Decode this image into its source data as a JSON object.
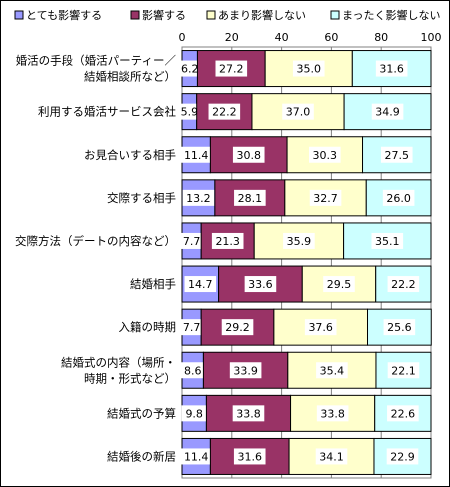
{
  "chart_data": {
    "type": "bar",
    "orientation": "horizontal",
    "stacked": "percent",
    "xlim": [
      0,
      100
    ],
    "xticks": [
      "0",
      "20",
      "40",
      "60",
      "80",
      "100"
    ],
    "legend_position": "top",
    "categories": [
      [
        "婚活の手段（婚活パーティー／",
        "結婚相談所など）"
      ],
      [
        "利用する婚活サービス会社"
      ],
      [
        "お見合いする相手"
      ],
      [
        "交際する相手"
      ],
      [
        "交際方法（デートの内容など）"
      ],
      [
        "結婚相手"
      ],
      [
        "入籍の時期"
      ],
      [
        "結婚式の内容（場所・",
        "時期・形式など）"
      ],
      [
        "結婚式の予算"
      ],
      [
        "結婚後の新居"
      ]
    ],
    "series": [
      {
        "name": "とても影響する",
        "color": "#9999ff",
        "values": [
          6.2,
          5.9,
          11.4,
          13.2,
          7.7,
          14.7,
          7.7,
          8.6,
          9.8,
          11.4
        ]
      },
      {
        "name": "影響する",
        "color": "#993366",
        "values": [
          27.2,
          22.2,
          30.8,
          28.1,
          21.3,
          33.6,
          29.2,
          33.9,
          33.8,
          31.6
        ]
      },
      {
        "name": "あまり影響しない",
        "color": "#ffffcc",
        "values": [
          35.0,
          37.0,
          30.3,
          32.7,
          35.9,
          29.5,
          37.6,
          35.4,
          33.8,
          34.1
        ]
      },
      {
        "name": "まったく影響しない",
        "color": "#ccffff",
        "values": [
          31.6,
          34.9,
          27.5,
          26.0,
          35.1,
          22.2,
          25.6,
          22.1,
          22.6,
          22.9
        ]
      }
    ]
  }
}
